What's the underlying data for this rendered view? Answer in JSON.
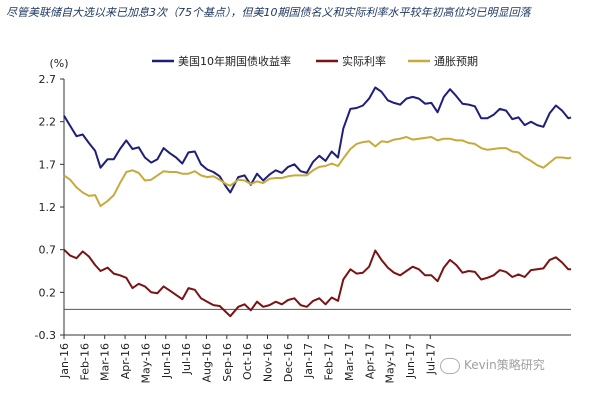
{
  "caption": "尽管美联储自大选以来已加息3次（75个基点），但美10期国债名义和实际利率水平较年初高位均已明显回落",
  "watermark": "Kevin策略研究",
  "chart_data": {
    "type": "line",
    "ylabel": "(%)",
    "ylim": [
      -0.3,
      2.7
    ],
    "yticks": [
      -0.3,
      0.2,
      0.7,
      1.2,
      1.7,
      2.2,
      2.7
    ],
    "ytick_labels": [
      "-0.3",
      "0.2",
      "0.7",
      "1.2",
      "1.7",
      "2.2",
      "2.7"
    ],
    "xticks": [
      "Jan-16",
      "Feb-16",
      "Mar-16",
      "Apr-16",
      "May-16",
      "Jun-16",
      "Jul-16",
      "Aug-16",
      "Sep-16",
      "Oct-16",
      "Nov-16",
      "Dec-16",
      "Jan-17",
      "Feb-17",
      "Mar-17",
      "Apr-17",
      "May-17",
      "Jun-17",
      "Jul-17"
    ],
    "x_start": "2016-01-01",
    "x_end": "2017-07-24",
    "legend_position": "top",
    "series": [
      {
        "name": "美国10年期国债收益率",
        "color": "#1f1f7a",
        "points": [
          [
            "2016-01-01",
            2.27
          ],
          [
            "2016-01-08",
            2.15
          ],
          [
            "2016-01-15",
            2.03
          ],
          [
            "2016-01-22",
            2.05
          ],
          [
            "2016-01-29",
            1.95
          ],
          [
            "2016-02-05",
            1.86
          ],
          [
            "2016-02-11",
            1.66
          ],
          [
            "2016-02-19",
            1.76
          ],
          [
            "2016-02-26",
            1.76
          ],
          [
            "2016-03-04",
            1.88
          ],
          [
            "2016-03-11",
            1.98
          ],
          [
            "2016-03-18",
            1.88
          ],
          [
            "2016-03-25",
            1.9
          ],
          [
            "2016-04-01",
            1.78
          ],
          [
            "2016-04-08",
            1.72
          ],
          [
            "2016-04-15",
            1.76
          ],
          [
            "2016-04-22",
            1.89
          ],
          [
            "2016-04-29",
            1.83
          ],
          [
            "2016-05-06",
            1.78
          ],
          [
            "2016-05-13",
            1.71
          ],
          [
            "2016-05-20",
            1.84
          ],
          [
            "2016-05-27",
            1.85
          ],
          [
            "2016-06-03",
            1.7
          ],
          [
            "2016-06-10",
            1.64
          ],
          [
            "2016-06-17",
            1.61
          ],
          [
            "2016-06-24",
            1.56
          ],
          [
            "2016-07-01",
            1.44
          ],
          [
            "2016-07-06",
            1.37
          ],
          [
            "2016-07-15",
            1.55
          ],
          [
            "2016-07-22",
            1.57
          ],
          [
            "2016-07-29",
            1.46
          ],
          [
            "2016-08-05",
            1.59
          ],
          [
            "2016-08-12",
            1.51
          ],
          [
            "2016-08-19",
            1.58
          ],
          [
            "2016-08-26",
            1.63
          ],
          [
            "2016-09-02",
            1.6
          ],
          [
            "2016-09-09",
            1.67
          ],
          [
            "2016-09-16",
            1.7
          ],
          [
            "2016-09-23",
            1.62
          ],
          [
            "2016-09-30",
            1.6
          ],
          [
            "2016-10-07",
            1.73
          ],
          [
            "2016-10-14",
            1.8
          ],
          [
            "2016-10-21",
            1.74
          ],
          [
            "2016-10-28",
            1.85
          ],
          [
            "2016-11-04",
            1.78
          ],
          [
            "2016-11-10",
            2.12
          ],
          [
            "2016-11-18",
            2.35
          ],
          [
            "2016-11-25",
            2.36
          ],
          [
            "2016-12-02",
            2.39
          ],
          [
            "2016-12-09",
            2.47
          ],
          [
            "2016-12-16",
            2.6
          ],
          [
            "2016-12-23",
            2.55
          ],
          [
            "2016-12-30",
            2.45
          ],
          [
            "2017-01-06",
            2.42
          ],
          [
            "2017-01-13",
            2.4
          ],
          [
            "2017-01-20",
            2.47
          ],
          [
            "2017-01-27",
            2.49
          ],
          [
            "2017-02-03",
            2.47
          ],
          [
            "2017-02-10",
            2.41
          ],
          [
            "2017-02-17",
            2.42
          ],
          [
            "2017-02-24",
            2.31
          ],
          [
            "2017-03-03",
            2.49
          ],
          [
            "2017-03-10",
            2.58
          ],
          [
            "2017-03-17",
            2.5
          ],
          [
            "2017-03-24",
            2.41
          ],
          [
            "2017-03-31",
            2.4
          ],
          [
            "2017-04-07",
            2.38
          ],
          [
            "2017-04-14",
            2.24
          ],
          [
            "2017-04-21",
            2.24
          ],
          [
            "2017-04-28",
            2.28
          ],
          [
            "2017-05-05",
            2.35
          ],
          [
            "2017-05-12",
            2.33
          ],
          [
            "2017-05-19",
            2.23
          ],
          [
            "2017-05-26",
            2.25
          ],
          [
            "2017-06-02",
            2.16
          ],
          [
            "2017-06-09",
            2.2
          ],
          [
            "2017-06-16",
            2.16
          ],
          [
            "2017-06-23",
            2.14
          ],
          [
            "2017-06-30",
            2.3
          ],
          [
            "2017-07-07",
            2.39
          ],
          [
            "2017-07-14",
            2.33
          ],
          [
            "2017-07-21",
            2.24
          ],
          [
            "2017-07-24",
            2.25
          ]
        ]
      },
      {
        "name": "实际利率",
        "color": "#7a1414",
        "points": [
          [
            "2016-01-01",
            0.7
          ],
          [
            "2016-01-08",
            0.63
          ],
          [
            "2016-01-15",
            0.6
          ],
          [
            "2016-01-22",
            0.68
          ],
          [
            "2016-01-29",
            0.62
          ],
          [
            "2016-02-05",
            0.52
          ],
          [
            "2016-02-11",
            0.45
          ],
          [
            "2016-02-19",
            0.49
          ],
          [
            "2016-02-26",
            0.42
          ],
          [
            "2016-03-04",
            0.4
          ],
          [
            "2016-03-11",
            0.37
          ],
          [
            "2016-03-18",
            0.25
          ],
          [
            "2016-03-25",
            0.3
          ],
          [
            "2016-04-01",
            0.27
          ],
          [
            "2016-04-08",
            0.2
          ],
          [
            "2016-04-15",
            0.19
          ],
          [
            "2016-04-22",
            0.27
          ],
          [
            "2016-04-29",
            0.22
          ],
          [
            "2016-05-06",
            0.17
          ],
          [
            "2016-05-13",
            0.12
          ],
          [
            "2016-05-20",
            0.25
          ],
          [
            "2016-05-27",
            0.23
          ],
          [
            "2016-06-03",
            0.13
          ],
          [
            "2016-06-10",
            0.09
          ],
          [
            "2016-06-17",
            0.05
          ],
          [
            "2016-06-24",
            0.04
          ],
          [
            "2016-07-01",
            -0.03
          ],
          [
            "2016-07-06",
            -0.08
          ],
          [
            "2016-07-15",
            0.03
          ],
          [
            "2016-07-22",
            0.06
          ],
          [
            "2016-07-29",
            -0.01
          ],
          [
            "2016-08-05",
            0.09
          ],
          [
            "2016-08-12",
            0.03
          ],
          [
            "2016-08-19",
            0.05
          ],
          [
            "2016-08-26",
            0.09
          ],
          [
            "2016-09-02",
            0.06
          ],
          [
            "2016-09-09",
            0.11
          ],
          [
            "2016-09-16",
            0.13
          ],
          [
            "2016-09-23",
            0.05
          ],
          [
            "2016-09-30",
            0.03
          ],
          [
            "2016-10-07",
            0.1
          ],
          [
            "2016-10-14",
            0.13
          ],
          [
            "2016-10-21",
            0.06
          ],
          [
            "2016-10-28",
            0.14
          ],
          [
            "2016-11-04",
            0.1
          ],
          [
            "2016-11-10",
            0.35
          ],
          [
            "2016-11-18",
            0.47
          ],
          [
            "2016-11-25",
            0.42
          ],
          [
            "2016-12-02",
            0.43
          ],
          [
            "2016-12-09",
            0.5
          ],
          [
            "2016-12-16",
            0.69
          ],
          [
            "2016-12-23",
            0.58
          ],
          [
            "2016-12-30",
            0.49
          ],
          [
            "2017-01-06",
            0.43
          ],
          [
            "2017-01-13",
            0.4
          ],
          [
            "2017-01-20",
            0.45
          ],
          [
            "2017-01-27",
            0.5
          ],
          [
            "2017-02-03",
            0.47
          ],
          [
            "2017-02-10",
            0.4
          ],
          [
            "2017-02-17",
            0.4
          ],
          [
            "2017-02-24",
            0.33
          ],
          [
            "2017-03-03",
            0.49
          ],
          [
            "2017-03-10",
            0.58
          ],
          [
            "2017-03-17",
            0.52
          ],
          [
            "2017-03-24",
            0.43
          ],
          [
            "2017-03-31",
            0.45
          ],
          [
            "2017-04-07",
            0.44
          ],
          [
            "2017-04-14",
            0.35
          ],
          [
            "2017-04-21",
            0.37
          ],
          [
            "2017-04-28",
            0.4
          ],
          [
            "2017-05-05",
            0.46
          ],
          [
            "2017-05-12",
            0.44
          ],
          [
            "2017-05-19",
            0.38
          ],
          [
            "2017-05-26",
            0.41
          ],
          [
            "2017-06-02",
            0.38
          ],
          [
            "2017-06-09",
            0.46
          ],
          [
            "2017-06-16",
            0.47
          ],
          [
            "2017-06-23",
            0.48
          ],
          [
            "2017-06-30",
            0.58
          ],
          [
            "2017-07-07",
            0.61
          ],
          [
            "2017-07-14",
            0.55
          ],
          [
            "2017-07-21",
            0.47
          ],
          [
            "2017-07-24",
            0.47
          ]
        ]
      },
      {
        "name": "通胀预期",
        "color": "#c8aa3c",
        "points": [
          [
            "2016-01-01",
            1.57
          ],
          [
            "2016-01-08",
            1.52
          ],
          [
            "2016-01-15",
            1.43
          ],
          [
            "2016-01-22",
            1.37
          ],
          [
            "2016-01-29",
            1.33
          ],
          [
            "2016-02-05",
            1.34
          ],
          [
            "2016-02-11",
            1.21
          ],
          [
            "2016-02-19",
            1.27
          ],
          [
            "2016-02-26",
            1.34
          ],
          [
            "2016-03-04",
            1.48
          ],
          [
            "2016-03-11",
            1.61
          ],
          [
            "2016-03-18",
            1.63
          ],
          [
            "2016-03-25",
            1.6
          ],
          [
            "2016-04-01",
            1.51
          ],
          [
            "2016-04-08",
            1.52
          ],
          [
            "2016-04-15",
            1.57
          ],
          [
            "2016-04-22",
            1.62
          ],
          [
            "2016-04-29",
            1.61
          ],
          [
            "2016-05-06",
            1.61
          ],
          [
            "2016-05-13",
            1.59
          ],
          [
            "2016-05-20",
            1.59
          ],
          [
            "2016-05-27",
            1.62
          ],
          [
            "2016-06-03",
            1.57
          ],
          [
            "2016-06-10",
            1.55
          ],
          [
            "2016-06-17",
            1.56
          ],
          [
            "2016-06-24",
            1.52
          ],
          [
            "2016-07-01",
            1.47
          ],
          [
            "2016-07-06",
            1.45
          ],
          [
            "2016-07-15",
            1.52
          ],
          [
            "2016-07-22",
            1.51
          ],
          [
            "2016-07-29",
            1.47
          ],
          [
            "2016-08-05",
            1.5
          ],
          [
            "2016-08-12",
            1.48
          ],
          [
            "2016-08-19",
            1.53
          ],
          [
            "2016-08-26",
            1.54
          ],
          [
            "2016-09-02",
            1.54
          ],
          [
            "2016-09-09",
            1.56
          ],
          [
            "2016-09-16",
            1.57
          ],
          [
            "2016-09-23",
            1.57
          ],
          [
            "2016-09-30",
            1.57
          ],
          [
            "2016-10-07",
            1.63
          ],
          [
            "2016-10-14",
            1.67
          ],
          [
            "2016-10-21",
            1.68
          ],
          [
            "2016-10-28",
            1.71
          ],
          [
            "2016-11-04",
            1.68
          ],
          [
            "2016-11-10",
            1.77
          ],
          [
            "2016-11-18",
            1.88
          ],
          [
            "2016-11-25",
            1.94
          ],
          [
            "2016-12-02",
            1.96
          ],
          [
            "2016-12-09",
            1.97
          ],
          [
            "2016-12-16",
            1.91
          ],
          [
            "2016-12-23",
            1.97
          ],
          [
            "2016-12-30",
            1.96
          ],
          [
            "2017-01-06",
            1.99
          ],
          [
            "2017-01-13",
            2.0
          ],
          [
            "2017-01-20",
            2.02
          ],
          [
            "2017-01-27",
            1.99
          ],
          [
            "2017-02-03",
            2.0
          ],
          [
            "2017-02-10",
            2.01
          ],
          [
            "2017-02-17",
            2.02
          ],
          [
            "2017-02-24",
            1.98
          ],
          [
            "2017-03-03",
            2.0
          ],
          [
            "2017-03-10",
            2.0
          ],
          [
            "2017-03-17",
            1.98
          ],
          [
            "2017-03-24",
            1.98
          ],
          [
            "2017-03-31",
            1.95
          ],
          [
            "2017-04-07",
            1.94
          ],
          [
            "2017-04-14",
            1.89
          ],
          [
            "2017-04-21",
            1.87
          ],
          [
            "2017-04-28",
            1.88
          ],
          [
            "2017-05-05",
            1.89
          ],
          [
            "2017-05-12",
            1.89
          ],
          [
            "2017-05-19",
            1.85
          ],
          [
            "2017-05-26",
            1.84
          ],
          [
            "2017-06-02",
            1.78
          ],
          [
            "2017-06-09",
            1.74
          ],
          [
            "2017-06-16",
            1.69
          ],
          [
            "2017-06-23",
            1.66
          ],
          [
            "2017-06-30",
            1.72
          ],
          [
            "2017-07-07",
            1.78
          ],
          [
            "2017-07-14",
            1.78
          ],
          [
            "2017-07-21",
            1.77
          ],
          [
            "2017-07-24",
            1.78
          ]
        ]
      }
    ]
  }
}
